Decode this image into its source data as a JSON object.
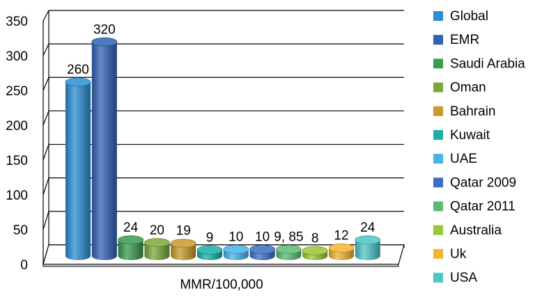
{
  "chart_data": {
    "type": "bar",
    "title": "",
    "xlabel": "MMR/100,000",
    "ylabel": "",
    "ylim": [
      0,
      350
    ],
    "yticks": [
      0,
      50,
      100,
      150,
      200,
      250,
      300,
      350
    ],
    "grid": true,
    "legend_position": "right",
    "series": [
      {
        "name": "Global",
        "value": 260,
        "label": "260",
        "color": "#2a8fd4"
      },
      {
        "name": "EMR",
        "value": 320,
        "label": "320",
        "color": "#2f62b5"
      },
      {
        "name": "Saudi Arabia",
        "value": 24,
        "label": "24",
        "color": "#3a9a4e"
      },
      {
        "name": "Oman",
        "value": 20,
        "label": "20",
        "color": "#7aa83a"
      },
      {
        "name": "Bahrain",
        "value": 19,
        "label": "19",
        "color": "#c99a2e"
      },
      {
        "name": "Kuwait",
        "value": 9,
        "label": "9",
        "color": "#16b0a8"
      },
      {
        "name": "UAE",
        "value": 10,
        "label": "10",
        "color": "#49b3ea"
      },
      {
        "name": "Qatar 2009",
        "value": 10,
        "label": "10",
        "color": "#3b6fc4"
      },
      {
        "name": "Qatar 2011",
        "value": 9.85,
        "label": "9, 85",
        "color": "#5cbc74"
      },
      {
        "name": "Australia",
        "value": 8,
        "label": "8",
        "color": "#9bc73a"
      },
      {
        "name": "Uk",
        "value": 12,
        "label": "12",
        "color": "#f2b531"
      },
      {
        "name": "USA",
        "value": 24,
        "label": "24",
        "color": "#4cc7c8"
      }
    ]
  }
}
